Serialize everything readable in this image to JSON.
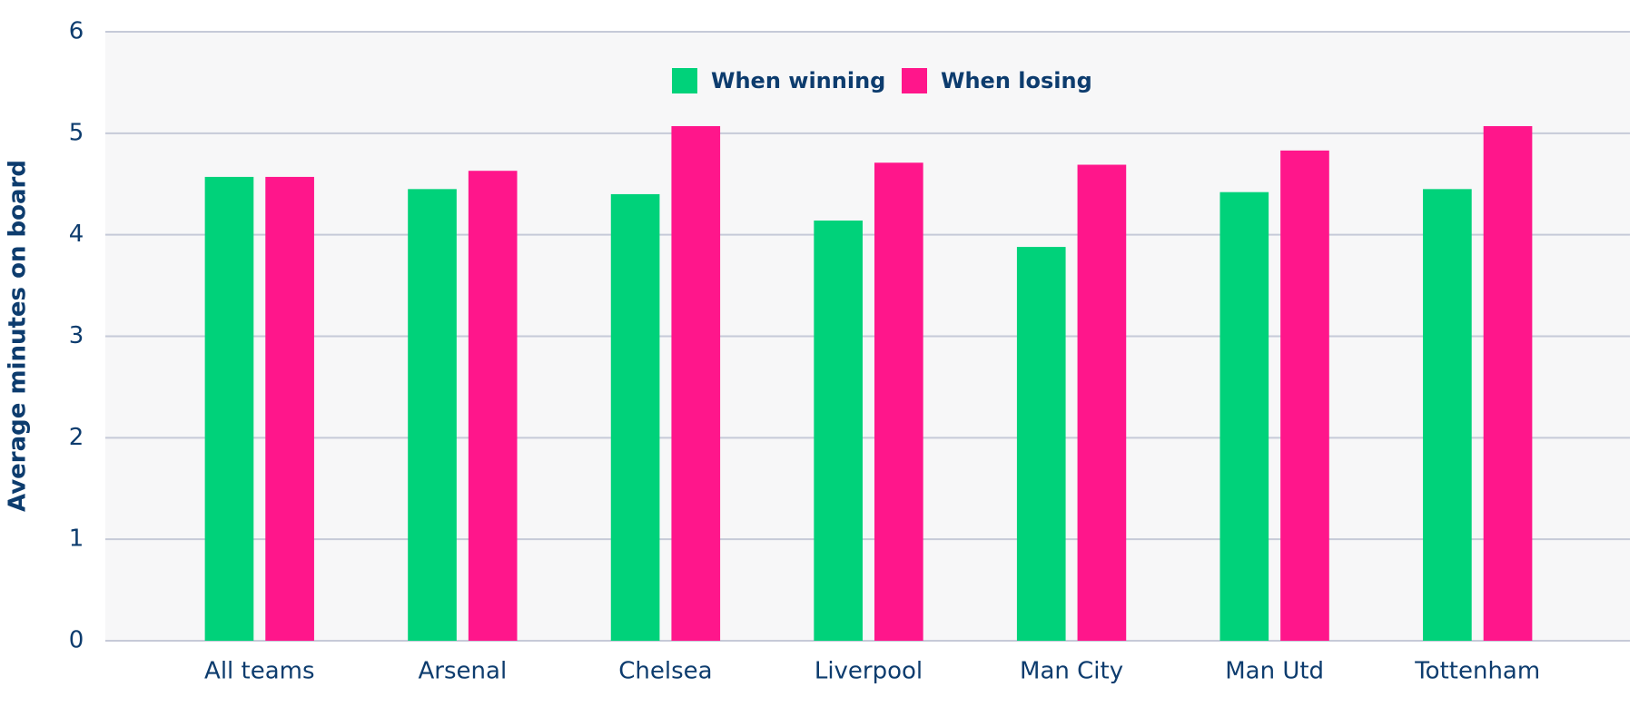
{
  "chart_data": {
    "type": "bar",
    "y_label": "Average minutes on board",
    "categories": [
      "All teams",
      "Arsenal",
      "Chelsea",
      "Liverpool",
      "Man City",
      "Man Utd",
      "Tottenham"
    ],
    "series": [
      {
        "name": "When winning",
        "color": "#00d27a",
        "values": [
          4.57,
          4.45,
          4.4,
          4.14,
          3.88,
          4.42,
          4.45
        ]
      },
      {
        "name": "When losing",
        "color": "#ff168b",
        "values": [
          4.57,
          4.63,
          5.07,
          4.71,
          4.69,
          4.83,
          5.07
        ]
      }
    ],
    "ylim": [
      0,
      6
    ],
    "yticks": [
      0,
      1,
      2,
      3,
      4,
      5,
      6
    ],
    "grid": true,
    "legend": "top"
  }
}
